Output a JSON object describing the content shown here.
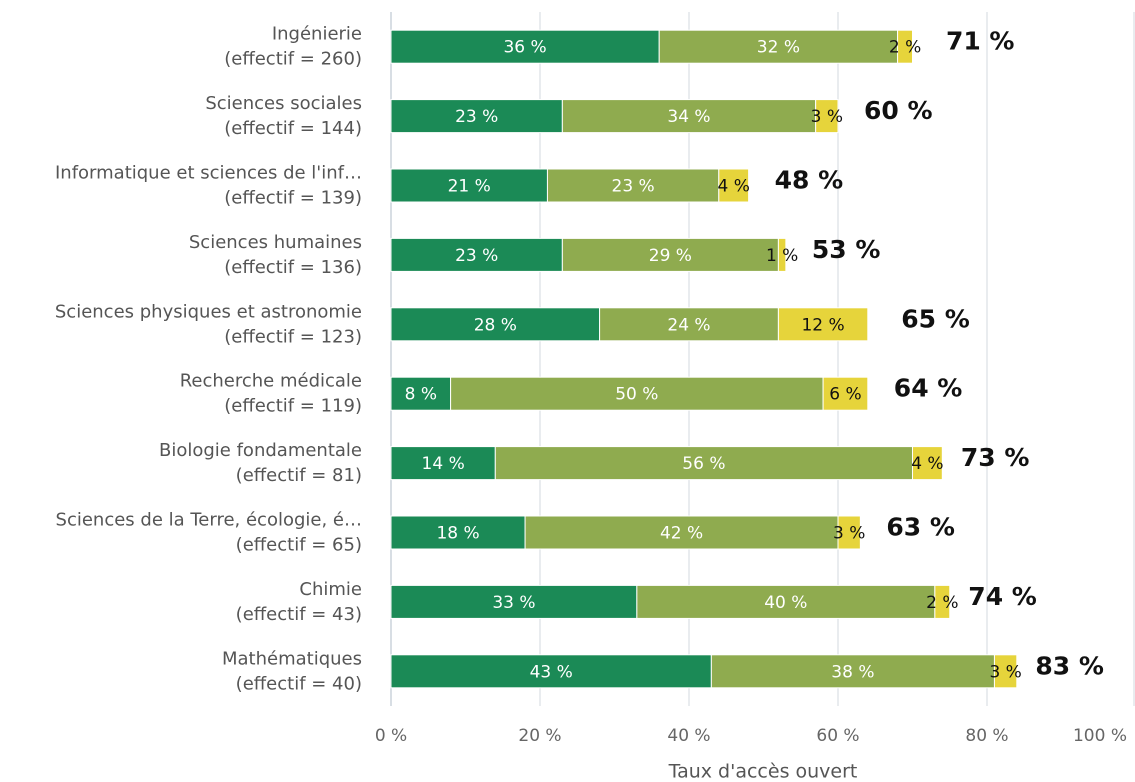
{
  "chart_data": {
    "type": "stacked-bar-horizontal",
    "categories": [
      "Ingénierie",
      "Sciences sociales",
      "Informatique et sciences de l'inf…",
      "Sciences humaines",
      "Sciences physiques et astronomie",
      "Recherche médicale",
      "Biologie fondamentale",
      "Sciences de la Terre, écologie, é…",
      "Chimie",
      "Mathématiques"
    ],
    "category_sublabels": [
      "(effectif = 260)",
      "(effectif = 144)",
      "(effectif = 139)",
      "(effectif = 136)",
      "(effectif = 123)",
      "(effectif = 119)",
      "(effectif = 81)",
      "(effectif = 65)",
      "(effectif = 43)",
      "(effectif = 40)"
    ],
    "series": [
      {
        "color": "#1b8a56",
        "values": [
          36,
          23,
          21,
          23,
          28,
          8,
          14,
          18,
          33,
          43
        ],
        "value_labels": [
          "36 %",
          "23 %",
          "21 %",
          "23 %",
          "28 %",
          "8 %",
          "14 %",
          "18 %",
          "33 %",
          "43 %"
        ]
      },
      {
        "color": "#8fab4f",
        "values": [
          32,
          34,
          23,
          29,
          24,
          50,
          56,
          42,
          40,
          38
        ],
        "value_labels": [
          "32 %",
          "34 %",
          "23 %",
          "29 %",
          "24 %",
          "50 %",
          "56 %",
          "42 %",
          "40 %",
          "38 %"
        ]
      },
      {
        "color": "#e6d43b",
        "values": [
          2,
          3,
          4,
          1,
          12,
          6,
          4,
          3,
          2,
          3
        ],
        "value_labels": [
          "2 %",
          "3 %",
          "4 %",
          "1 %",
          "12 %",
          "6 %",
          "4 %",
          "3 %",
          "2 %",
          "3 %"
        ]
      }
    ],
    "totals": [
      71,
      60,
      48,
      53,
      65,
      64,
      73,
      63,
      74,
      83
    ],
    "total_labels": [
      "71 %",
      "60 %",
      "48 %",
      "53 %",
      "65 %",
      "64 %",
      "73 %",
      "63 %",
      "74 %",
      "83 %"
    ],
    "xlabel": "Taux d'accès ouvert",
    "xlim": [
      0,
      100
    ],
    "xticks": [
      {
        "value": 0,
        "label": "0 %"
      },
      {
        "value": 20,
        "label": "20 %"
      },
      {
        "value": 40,
        "label": "40 %"
      },
      {
        "value": 60,
        "label": "60 %"
      },
      {
        "value": 80,
        "label": "80 %"
      },
      {
        "value": 100,
        "label": "100 %"
      }
    ],
    "grid": true
  }
}
